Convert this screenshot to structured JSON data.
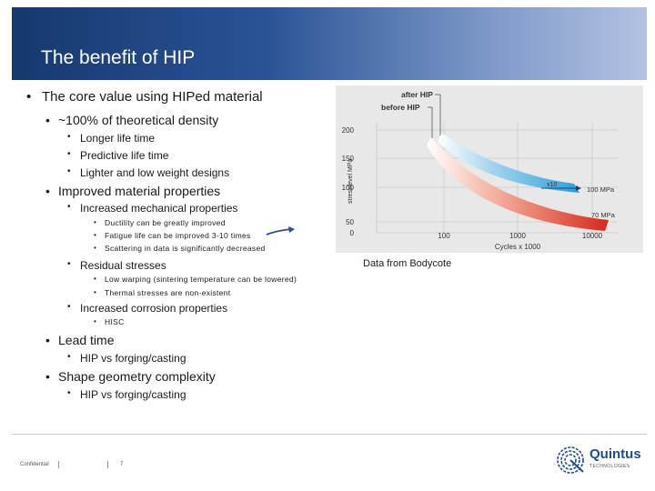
{
  "slide": {
    "title": "The benefit of HIP"
  },
  "content": {
    "core_value": "The core value using HIPed material",
    "density": "~100% of theoretical density",
    "longer_life": "Longer life time",
    "predictive_life": "Predictive life time",
    "lighter": "Lighter and low weight  designs",
    "improved_props": "Improved material properties",
    "increased_mech": "Increased mechanical properties",
    "ductility": "Ductility can be greatly improved",
    "fatigue": "Fatigue life can be improved 3-10 times",
    "scattering": "Scattering in data is significantly decreased",
    "residual": "Residual stresses",
    "low_warping": "Low warping (sintering temperature can be lowered)",
    "thermal": "Thermal stresses are non-existent",
    "corrosion": "Increased corrosion properties",
    "hisc": "HISC",
    "lead_time": "Lead time",
    "lead_sub": "HIP vs forging/casting",
    "shape": "Shape geometry complexity",
    "shape_sub": "HIP vs forging/casting"
  },
  "figure": {
    "caption": "Data from Bodycote",
    "legend_after": "after HIP",
    "legend_before": "before HIP",
    "ylabel": "stresslevel MPa",
    "xlabel": "Cycles x 1000",
    "y_ticks": [
      "200",
      "150",
      "100",
      "50",
      "0"
    ],
    "x_ticks": [
      "100",
      "1000",
      "10000"
    ],
    "label_100": "100 MPa",
    "label_70": "70 MPa",
    "label_x10": "x10",
    "colors": {
      "after": "#4fb0da",
      "before": "#e2412f",
      "panel": "#e8e8e8"
    }
  },
  "footer": {
    "confidential": "Confidential",
    "page": "7",
    "logo_word": "Quintus",
    "logo_sub": "TECHNOLOGIES"
  }
}
